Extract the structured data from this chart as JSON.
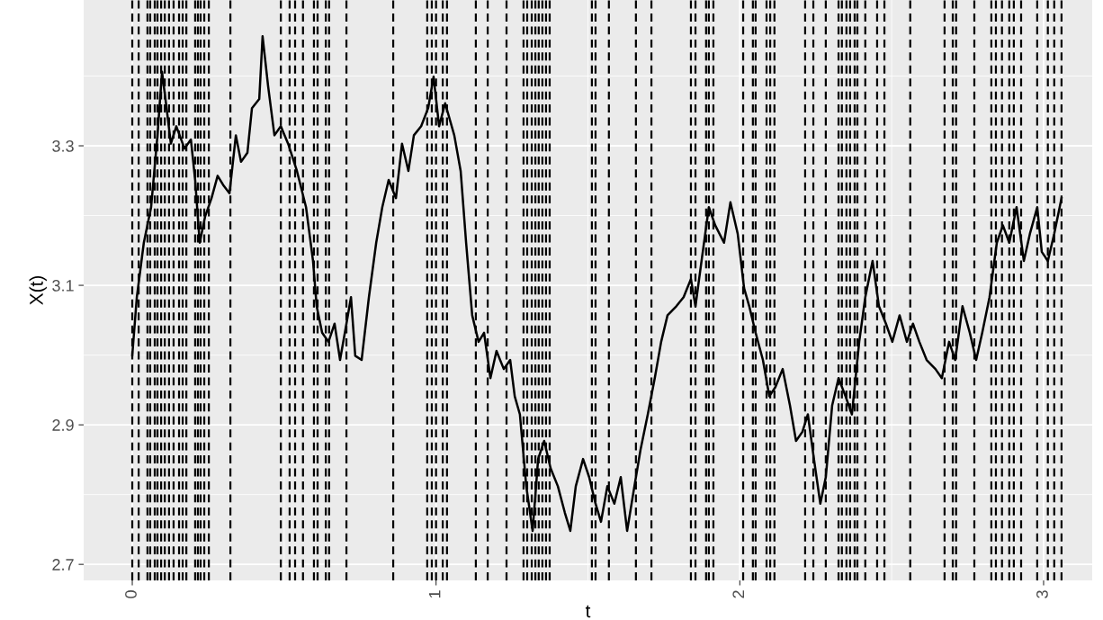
{
  "chart_data": {
    "type": "line",
    "xlabel": "t",
    "ylabel": "X(t)",
    "x": [
      0,
      0.015,
      0.038,
      0.062,
      0.083,
      0.098,
      0.113,
      0.127,
      0.145,
      0.172,
      0.193,
      0.207,
      0.222,
      0.24,
      0.261,
      0.281,
      0.299,
      0.32,
      0.341,
      0.358,
      0.379,
      0.394,
      0.418,
      0.429,
      0.447,
      0.468,
      0.489,
      0.513,
      0.542,
      0.572,
      0.595,
      0.607,
      0.625,
      0.646,
      0.666,
      0.684,
      0.705,
      0.72,
      0.734,
      0.755,
      0.779,
      0.803,
      0.823,
      0.844,
      0.868,
      0.888,
      0.909,
      0.927,
      0.951,
      0.974,
      0.992,
      1.01,
      1.03,
      1.06,
      1.081,
      1.099,
      1.119,
      1.14,
      1.158,
      1.179,
      1.199,
      1.223,
      1.244,
      1.259,
      1.276,
      1.297,
      1.318,
      1.336,
      1.356,
      1.377,
      1.401,
      1.424,
      1.442,
      1.46,
      1.484,
      1.504,
      1.525,
      1.543,
      1.564,
      1.587,
      1.608,
      1.629,
      1.653,
      1.673,
      1.697,
      1.72,
      1.741,
      1.762,
      1.791,
      1.815,
      1.839,
      1.854,
      1.874,
      1.898,
      1.919,
      1.948,
      1.969,
      1.993,
      2.014,
      2.031,
      2.052,
      2.076,
      2.097,
      2.117,
      2.141,
      2.165,
      2.185,
      2.206,
      2.224,
      2.244,
      2.265,
      2.283,
      2.304,
      2.325,
      2.348,
      2.369,
      2.393,
      2.413,
      2.437,
      2.458,
      2.481,
      2.502,
      2.526,
      2.55,
      2.57,
      2.591,
      2.615,
      2.644,
      2.665,
      2.689,
      2.709,
      2.733,
      2.757,
      2.778,
      2.798,
      2.822,
      2.846,
      2.866,
      2.887,
      2.911,
      2.935,
      2.955,
      2.979,
      2.994,
      3.014,
      3.035,
      3.059
    ],
    "series": [
      {
        "color": "#000000",
        "values": [
          3.0,
          3.083,
          3.161,
          3.212,
          3.315,
          3.406,
          3.354,
          3.303,
          3.328,
          3.296,
          3.309,
          3.251,
          3.161,
          3.199,
          3.225,
          3.257,
          3.244,
          3.232,
          3.315,
          3.277,
          3.29,
          3.354,
          3.367,
          3.457,
          3.386,
          3.315,
          3.328,
          3.303,
          3.264,
          3.212,
          3.135,
          3.07,
          3.032,
          3.019,
          3.045,
          2.993,
          3.045,
          3.083,
          2.999,
          2.993,
          3.083,
          3.161,
          3.212,
          3.251,
          3.225,
          3.303,
          3.264,
          3.315,
          3.328,
          3.354,
          3.399,
          3.328,
          3.361,
          3.315,
          3.264,
          3.161,
          3.057,
          3.019,
          3.032,
          2.967,
          3.006,
          2.98,
          2.993,
          2.941,
          2.915,
          2.812,
          2.748,
          2.851,
          2.877,
          2.838,
          2.812,
          2.774,
          2.748,
          2.812,
          2.851,
          2.825,
          2.787,
          2.761,
          2.812,
          2.787,
          2.825,
          2.748,
          2.812,
          2.864,
          2.915,
          2.967,
          3.019,
          3.057,
          3.07,
          3.083,
          3.109,
          3.07,
          3.135,
          3.212,
          3.186,
          3.161,
          3.219,
          3.174,
          3.096,
          3.07,
          3.032,
          2.993,
          2.941,
          2.954,
          2.98,
          2.928,
          2.877,
          2.89,
          2.915,
          2.851,
          2.787,
          2.825,
          2.928,
          2.967,
          2.941,
          2.915,
          3.019,
          3.083,
          3.135,
          3.07,
          3.045,
          3.019,
          3.057,
          3.019,
          3.045,
          3.019,
          2.993,
          2.98,
          2.967,
          3.019,
          2.993,
          3.07,
          3.032,
          2.993,
          3.032,
          3.083,
          3.161,
          3.186,
          3.161,
          3.212,
          3.135,
          3.174,
          3.212,
          3.148,
          3.135,
          3.174,
          3.225
        ]
      }
    ],
    "xlim": [
      -0.16,
      3.16
    ],
    "ylim": [
      2.677,
      3.509
    ],
    "xticks": [
      0,
      1,
      2,
      3
    ],
    "yticks": [
      2.7,
      2.9,
      3.1,
      3.3
    ],
    "grid": true,
    "ref_lines": [
      {
        "axis": "x",
        "value": 0.0,
        "color": "#000000",
        "line_style": "dashed"
      },
      {
        "axis": "x",
        "value": 0.021,
        "color": "#000000",
        "line_style": "dashed"
      },
      {
        "axis": "x",
        "value": 0.05,
        "color": "#000000",
        "line_style": "dashed"
      },
      {
        "axis": "x",
        "value": 0.059,
        "color": "#000000",
        "line_style": "dashed"
      },
      {
        "axis": "x",
        "value": 0.074,
        "color": "#000000",
        "line_style": "dashed"
      },
      {
        "axis": "x",
        "value": 0.083,
        "color": "#000000",
        "line_style": "dashed"
      },
      {
        "axis": "x",
        "value": 0.095,
        "color": "#000000",
        "line_style": "dashed"
      },
      {
        "axis": "x",
        "value": 0.107,
        "color": "#000000",
        "line_style": "dashed"
      },
      {
        "axis": "x",
        "value": 0.121,
        "color": "#000000",
        "line_style": "dashed"
      },
      {
        "axis": "x",
        "value": 0.136,
        "color": "#000000",
        "line_style": "dashed"
      },
      {
        "axis": "x",
        "value": 0.154,
        "color": "#000000",
        "line_style": "dashed"
      },
      {
        "axis": "x",
        "value": 0.166,
        "color": "#000000",
        "line_style": "dashed"
      },
      {
        "axis": "x",
        "value": 0.178,
        "color": "#000000",
        "line_style": "dashed"
      },
      {
        "axis": "x",
        "value": 0.207,
        "color": "#000000",
        "line_style": "dashed"
      },
      {
        "axis": "x",
        "value": 0.216,
        "color": "#000000",
        "line_style": "dashed"
      },
      {
        "axis": "x",
        "value": 0.225,
        "color": "#000000",
        "line_style": "dashed"
      },
      {
        "axis": "x",
        "value": 0.237,
        "color": "#000000",
        "line_style": "dashed"
      },
      {
        "axis": "x",
        "value": 0.252,
        "color": "#000000",
        "line_style": "dashed"
      },
      {
        "axis": "x",
        "value": 0.323,
        "color": "#000000",
        "line_style": "dashed"
      },
      {
        "axis": "x",
        "value": 0.489,
        "color": "#000000",
        "line_style": "dashed"
      },
      {
        "axis": "x",
        "value": 0.518,
        "color": "#000000",
        "line_style": "dashed"
      },
      {
        "axis": "x",
        "value": 0.536,
        "color": "#000000",
        "line_style": "dashed"
      },
      {
        "axis": "x",
        "value": 0.562,
        "color": "#000000",
        "line_style": "dashed"
      },
      {
        "axis": "x",
        "value": 0.598,
        "color": "#000000",
        "line_style": "dashed"
      },
      {
        "axis": "x",
        "value": 0.61,
        "color": "#000000",
        "line_style": "dashed"
      },
      {
        "axis": "x",
        "value": 0.637,
        "color": "#000000",
        "line_style": "dashed"
      },
      {
        "axis": "x",
        "value": 0.648,
        "color": "#000000",
        "line_style": "dashed"
      },
      {
        "axis": "x",
        "value": 0.705,
        "color": "#000000",
        "line_style": "dashed"
      },
      {
        "axis": "x",
        "value": 0.859,
        "color": "#000000",
        "line_style": "dashed"
      },
      {
        "axis": "x",
        "value": 0.971,
        "color": "#000000",
        "line_style": "dashed"
      },
      {
        "axis": "x",
        "value": 0.986,
        "color": "#000000",
        "line_style": "dashed"
      },
      {
        "axis": "x",
        "value": 1.0,
        "color": "#000000",
        "line_style": "dashed"
      },
      {
        "axis": "x",
        "value": 1.022,
        "color": "#000000",
        "line_style": "dashed"
      },
      {
        "axis": "x",
        "value": 1.036,
        "color": "#000000",
        "line_style": "dashed"
      },
      {
        "axis": "x",
        "value": 1.131,
        "color": "#000000",
        "line_style": "dashed"
      },
      {
        "axis": "x",
        "value": 1.17,
        "color": "#000000",
        "line_style": "dashed"
      },
      {
        "axis": "x",
        "value": 1.232,
        "color": "#000000",
        "line_style": "dashed"
      },
      {
        "axis": "x",
        "value": 1.288,
        "color": "#000000",
        "line_style": "dashed"
      },
      {
        "axis": "x",
        "value": 1.3,
        "color": "#000000",
        "line_style": "dashed"
      },
      {
        "axis": "x",
        "value": 1.315,
        "color": "#000000",
        "line_style": "dashed"
      },
      {
        "axis": "x",
        "value": 1.327,
        "color": "#000000",
        "line_style": "dashed"
      },
      {
        "axis": "x",
        "value": 1.338,
        "color": "#000000",
        "line_style": "dashed"
      },
      {
        "axis": "x",
        "value": 1.35,
        "color": "#000000",
        "line_style": "dashed"
      },
      {
        "axis": "x",
        "value": 1.362,
        "color": "#000000",
        "line_style": "dashed"
      },
      {
        "axis": "x",
        "value": 1.374,
        "color": "#000000",
        "line_style": "dashed"
      },
      {
        "axis": "x",
        "value": 1.513,
        "color": "#000000",
        "line_style": "dashed"
      },
      {
        "axis": "x",
        "value": 1.525,
        "color": "#000000",
        "line_style": "dashed"
      },
      {
        "axis": "x",
        "value": 1.569,
        "color": "#000000",
        "line_style": "dashed"
      },
      {
        "axis": "x",
        "value": 1.658,
        "color": "#000000",
        "line_style": "dashed"
      },
      {
        "axis": "x",
        "value": 1.709,
        "color": "#000000",
        "line_style": "dashed"
      },
      {
        "axis": "x",
        "value": 1.839,
        "color": "#000000",
        "line_style": "dashed"
      },
      {
        "axis": "x",
        "value": 1.854,
        "color": "#000000",
        "line_style": "dashed"
      },
      {
        "axis": "x",
        "value": 1.889,
        "color": "#000000",
        "line_style": "dashed"
      },
      {
        "axis": "x",
        "value": 1.898,
        "color": "#000000",
        "line_style": "dashed"
      },
      {
        "axis": "x",
        "value": 1.913,
        "color": "#000000",
        "line_style": "dashed"
      },
      {
        "axis": "x",
        "value": 2.011,
        "color": "#000000",
        "line_style": "dashed"
      },
      {
        "axis": "x",
        "value": 2.043,
        "color": "#000000",
        "line_style": "dashed"
      },
      {
        "axis": "x",
        "value": 2.052,
        "color": "#000000",
        "line_style": "dashed"
      },
      {
        "axis": "x",
        "value": 2.088,
        "color": "#000000",
        "line_style": "dashed"
      },
      {
        "axis": "x",
        "value": 2.1,
        "color": "#000000",
        "line_style": "dashed"
      },
      {
        "axis": "x",
        "value": 2.114,
        "color": "#000000",
        "line_style": "dashed"
      },
      {
        "axis": "x",
        "value": 2.215,
        "color": "#000000",
        "line_style": "dashed"
      },
      {
        "axis": "x",
        "value": 2.242,
        "color": "#000000",
        "line_style": "dashed"
      },
      {
        "axis": "x",
        "value": 2.283,
        "color": "#000000",
        "line_style": "dashed"
      },
      {
        "axis": "x",
        "value": 2.325,
        "color": "#000000",
        "line_style": "dashed"
      },
      {
        "axis": "x",
        "value": 2.336,
        "color": "#000000",
        "line_style": "dashed"
      },
      {
        "axis": "x",
        "value": 2.351,
        "color": "#000000",
        "line_style": "dashed"
      },
      {
        "axis": "x",
        "value": 2.363,
        "color": "#000000",
        "line_style": "dashed"
      },
      {
        "axis": "x",
        "value": 2.378,
        "color": "#000000",
        "line_style": "dashed"
      },
      {
        "axis": "x",
        "value": 2.387,
        "color": "#000000",
        "line_style": "dashed"
      },
      {
        "axis": "x",
        "value": 2.413,
        "color": "#000000",
        "line_style": "dashed"
      },
      {
        "axis": "x",
        "value": 2.452,
        "color": "#000000",
        "line_style": "dashed"
      },
      {
        "axis": "x",
        "value": 2.476,
        "color": "#000000",
        "line_style": "dashed"
      },
      {
        "axis": "x",
        "value": 2.561,
        "color": "#000000",
        "line_style": "dashed"
      },
      {
        "axis": "x",
        "value": 2.674,
        "color": "#000000",
        "line_style": "dashed"
      },
      {
        "axis": "x",
        "value": 2.701,
        "color": "#000000",
        "line_style": "dashed"
      },
      {
        "axis": "x",
        "value": 2.712,
        "color": "#000000",
        "line_style": "dashed"
      },
      {
        "axis": "x",
        "value": 2.772,
        "color": "#000000",
        "line_style": "dashed"
      },
      {
        "axis": "x",
        "value": 2.828,
        "color": "#000000",
        "line_style": "dashed"
      },
      {
        "axis": "x",
        "value": 2.843,
        "color": "#000000",
        "line_style": "dashed"
      },
      {
        "axis": "x",
        "value": 2.863,
        "color": "#000000",
        "line_style": "dashed"
      },
      {
        "axis": "x",
        "value": 2.887,
        "color": "#000000",
        "line_style": "dashed"
      },
      {
        "axis": "x",
        "value": 2.902,
        "color": "#000000",
        "line_style": "dashed"
      },
      {
        "axis": "x",
        "value": 2.926,
        "color": "#000000",
        "line_style": "dashed"
      },
      {
        "axis": "x",
        "value": 2.979,
        "color": "#000000",
        "line_style": "dashed"
      },
      {
        "axis": "x",
        "value": 3.014,
        "color": "#000000",
        "line_style": "dashed"
      },
      {
        "axis": "x",
        "value": 3.035,
        "color": "#000000",
        "line_style": "dashed"
      },
      {
        "axis": "x",
        "value": 3.059,
        "color": "#000000",
        "line_style": "dashed"
      }
    ]
  }
}
